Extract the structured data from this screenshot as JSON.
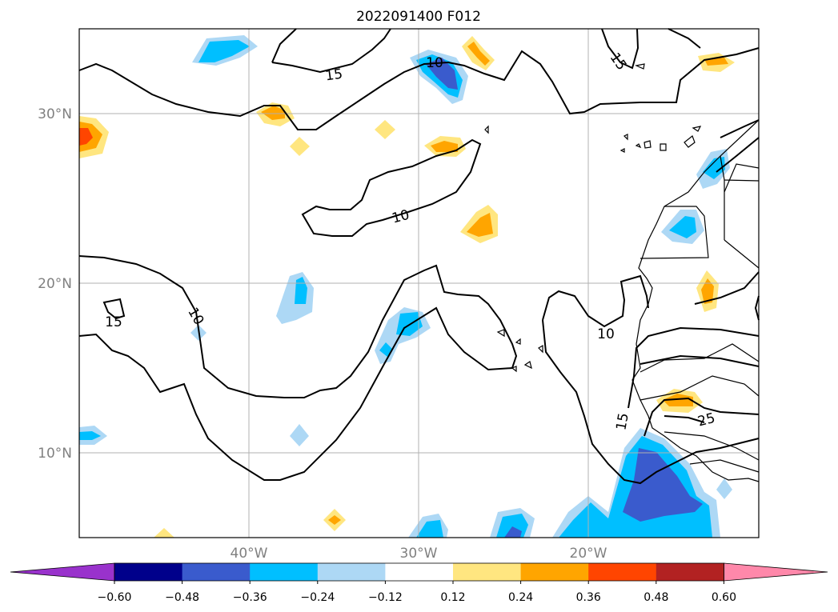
{
  "title": "2022091400 F012",
  "lon_labels": [
    "40°W",
    "30°W",
    "20°W"
  ],
  "lat_labels": [
    "30°N",
    "20°N",
    "10°N"
  ],
  "colorbar": {
    "ticks": [
      "−0.60",
      "−0.48",
      "−0.36",
      "−0.24",
      "−0.12",
      "0.12",
      "0.24",
      "0.36",
      "0.48",
      "0.60"
    ],
    "colors": [
      "#9932cc",
      "#00008b",
      "#3a5bcd",
      "#00bfff",
      "#add8f5",
      "#ffffff",
      "#ffe680",
      "#ffa500",
      "#ff4500",
      "#b22222",
      "#ff88aa"
    ]
  },
  "contour_labels": [
    "15",
    "10",
    "15",
    "10",
    "15",
    "10",
    "10",
    "15",
    "25"
  ]
}
